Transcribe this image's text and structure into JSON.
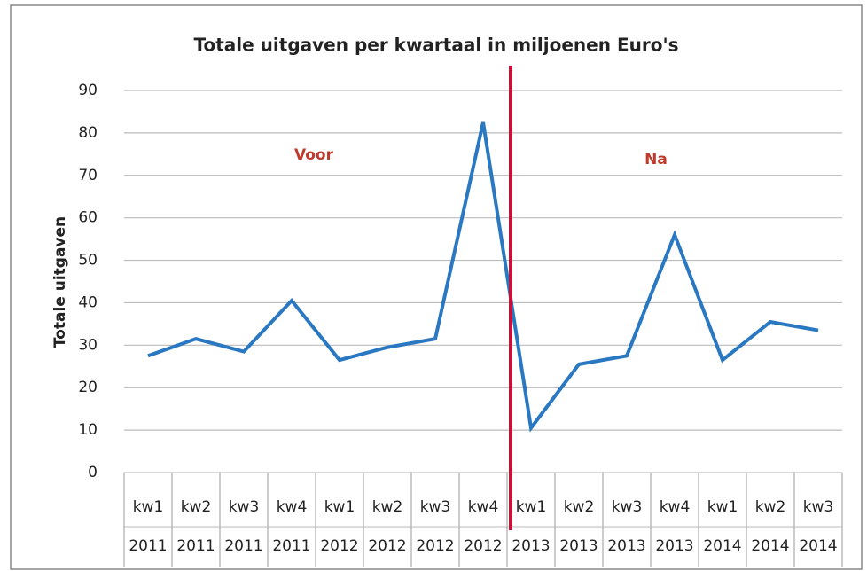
{
  "chart_data": {
    "type": "line",
    "title": "Totale uitgaven per kwartaal  in miljoenen Euro's",
    "y_label": "Totale uitgaven",
    "categories": [
      [
        "kw1",
        "2011"
      ],
      [
        "kw2",
        "2011"
      ],
      [
        "kw3",
        "2011"
      ],
      [
        "kw4",
        "2011"
      ],
      [
        "kw1",
        "2012"
      ],
      [
        "kw2",
        "2012"
      ],
      [
        "kw3",
        "2012"
      ],
      [
        "kw4",
        "2012"
      ],
      [
        "kw1",
        "2013"
      ],
      [
        "kw2",
        "2013"
      ],
      [
        "kw3",
        "2013"
      ],
      [
        "kw4",
        "2013"
      ],
      [
        "kw1",
        "2014"
      ],
      [
        "kw2",
        "2014"
      ],
      [
        "kw3",
        "2014"
      ]
    ],
    "series": [
      {
        "name": "Totale uitgaven",
        "color": "#2a78c2",
        "values": [
          27.5,
          31.5,
          28.5,
          40.5,
          26.5,
          29.5,
          31.5,
          82.5,
          10.5,
          25.5,
          27.5,
          56,
          26.5,
          35.5,
          33.5
        ]
      }
    ],
    "annotations": [
      {
        "text": "Voor",
        "color": "#c0392b"
      },
      {
        "text": "Na",
        "color": "#c0392b"
      }
    ],
    "ylim": [
      0,
      90
    ],
    "yticks": [
      0,
      10,
      20,
      30,
      40,
      50,
      60,
      70,
      80,
      90
    ],
    "grid": true
  }
}
